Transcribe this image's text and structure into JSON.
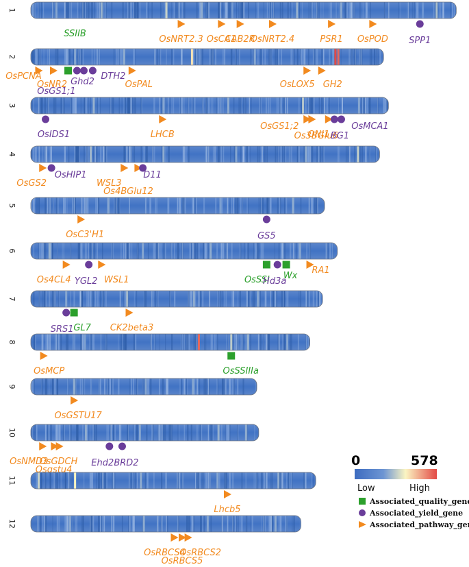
{
  "chart_data": {
    "type": "heatmap",
    "title": "",
    "scale": {
      "min": 0,
      "max": 578,
      "low_label": "Low",
      "high_label": "High",
      "colors": [
        "#3d6cc0",
        "#6d95d3",
        "#fbf5c2",
        "#e34a46"
      ]
    },
    "legend": [
      {
        "name": "Associated_quality_gene",
        "shape": "square",
        "color": "#2ca02c"
      },
      {
        "name": "Associated_yield_gene",
        "shape": "circle",
        "color": "#6a3d9a"
      },
      {
        "name": "Associated_pathway_gene",
        "shape": "triangle",
        "color": "#f28a1f"
      }
    ],
    "type_colors": {
      "quality": "#2ca02c",
      "yield": "#6a3d9a",
      "pathway": "#f28a1f"
    },
    "chromosomes": [
      {
        "id": "1",
        "length": 43.3,
        "bands": [
          {
            "pos": 2.5,
            "density": 230
          },
          {
            "pos": 7.1,
            "density": 250
          },
          {
            "pos": 13.7,
            "density": 300
          },
          {
            "pos": 17.3,
            "density": 240
          },
          {
            "pos": 20.4,
            "density": 210
          },
          {
            "pos": 27.0,
            "density": 250
          },
          {
            "pos": 31.5,
            "density": 230
          },
          {
            "pos": 39.8,
            "density": 200
          },
          {
            "pos": 41.2,
            "density": 270
          }
        ],
        "genes": [
          {
            "name": "OsNRT2.3",
            "type": "pathway",
            "pos": 15.3
          },
          {
            "name": "OsCA1",
            "type": "pathway",
            "pos": 19.4
          },
          {
            "name": "CAB2R",
            "type": "pathway",
            "pos": 21.3
          },
          {
            "name": "OsNRT2.4",
            "type": "pathway",
            "pos": 24.6
          },
          {
            "name": "PSR1",
            "type": "pathway",
            "pos": 30.6
          },
          {
            "name": "OsPOD",
            "type": "pathway",
            "pos": 34.8
          },
          {
            "name": "SPP1",
            "type": "yield",
            "pos": 39.6
          }
        ]
      },
      {
        "id": "2",
        "length": 35.9,
        "bands": [
          {
            "pos": 4.4,
            "density": 230
          },
          {
            "pos": 9.4,
            "density": 240
          },
          {
            "pos": 16.3,
            "density": 380
          },
          {
            "pos": 22.7,
            "density": 230
          },
          {
            "pos": 30.9,
            "density": 578
          },
          {
            "pos": 31.2,
            "density": 540
          }
        ],
        "genes": [
          {
            "name": "OsPCNA",
            "type": "pathway",
            "pos": 0.8
          },
          {
            "name": "OsNR2",
            "type": "pathway",
            "pos": 2.3
          },
          {
            "name": "SSIIB",
            "type": "quality",
            "pos": 3.8
          },
          {
            "name": "OsGS1;1",
            "type": "yield",
            "pos": 4.7
          },
          {
            "name": "Ghd2",
            "type": "yield",
            "pos": 5.4
          },
          {
            "name": "DTH2",
            "type": "yield",
            "pos": 6.3
          },
          {
            "name": "OsPAL",
            "type": "pathway",
            "pos": 10.3
          },
          {
            "name": "OsLOX5",
            "type": "pathway",
            "pos": 28.1
          },
          {
            "name": "GH2",
            "type": "pathway",
            "pos": 29.6
          }
        ]
      },
      {
        "id": "3",
        "length": 36.4,
        "bands": [
          {
            "pos": 6.3,
            "density": 250
          },
          {
            "pos": 13.4,
            "density": 230
          },
          {
            "pos": 20.0,
            "density": 240
          },
          {
            "pos": 27.6,
            "density": 280
          },
          {
            "pos": 33.3,
            "density": 230
          }
        ],
        "genes": [
          {
            "name": "OsIDS1",
            "type": "yield",
            "pos": 1.5
          },
          {
            "name": "LHCB",
            "type": "pathway",
            "pos": 13.4
          },
          {
            "name": "OsGS1;2",
            "type": "pathway",
            "pos": 28.1
          },
          {
            "name": "ONI1",
            "type": "pathway",
            "pos": 28.6
          },
          {
            "name": "Os3BGlu6",
            "type": "pathway",
            "pos": 30.3
          },
          {
            "name": "BG1",
            "type": "yield",
            "pos": 30.9
          },
          {
            "name": "OsMCA1",
            "type": "yield",
            "pos": 31.6
          }
        ]
      },
      {
        "id": "4",
        "length": 35.5,
        "bands": [
          {
            "pos": 6.0,
            "density": 260
          },
          {
            "pos": 13.4,
            "density": 240
          },
          {
            "pos": 20.8,
            "density": 230
          },
          {
            "pos": 27.9,
            "density": 240
          },
          {
            "pos": 33.2,
            "density": 300
          }
        ],
        "genes": [
          {
            "name": "OsGS2",
            "type": "pathway",
            "pos": 1.2
          },
          {
            "name": "OsHIP1",
            "type": "yield",
            "pos": 2.1
          },
          {
            "name": "WSL3",
            "type": "pathway",
            "pos": 9.5
          },
          {
            "name": "Os4BGlu12",
            "type": "pathway",
            "pos": 10.9
          },
          {
            "name": "D11",
            "type": "yield",
            "pos": 11.4
          }
        ]
      },
      {
        "id": "5",
        "length": 29.9,
        "bands": [
          {
            "pos": 7.8,
            "density": 230
          },
          {
            "pos": 19.2,
            "density": 220
          },
          {
            "pos": 26.6,
            "density": 240
          }
        ],
        "genes": [
          {
            "name": "OsC3'H1",
            "type": "pathway",
            "pos": 5.1
          },
          {
            "name": "GS5",
            "type": "yield",
            "pos": 24.0
          }
        ]
      },
      {
        "id": "6",
        "length": 31.2,
        "bands": [
          {
            "pos": 1.8,
            "density": 250
          },
          {
            "pos": 11.3,
            "density": 230
          },
          {
            "pos": 18.2,
            "density": 240
          },
          {
            "pos": 27.3,
            "density": 230
          }
        ],
        "genes": [
          {
            "name": "Os4CL4",
            "type": "pathway",
            "pos": 3.6
          },
          {
            "name": "YGL2",
            "type": "yield",
            "pos": 5.9
          },
          {
            "name": "WSL1",
            "type": "pathway",
            "pos": 7.2
          },
          {
            "name": "OsSSI",
            "type": "quality",
            "pos": 24.0
          },
          {
            "name": "Hd3a",
            "type": "yield",
            "pos": 25.1
          },
          {
            "name": "Wx",
            "type": "quality",
            "pos": 26.0
          },
          {
            "name": "RA1",
            "type": "pathway",
            "pos": 28.4
          }
        ]
      },
      {
        "id": "7",
        "length": 29.7,
        "bands": [
          {
            "pos": 3.5,
            "density": 230
          },
          {
            "pos": 9.7,
            "density": 260
          },
          {
            "pos": 16.5,
            "density": 240
          },
          {
            "pos": 23.0,
            "density": 230
          }
        ],
        "genes": [
          {
            "name": "SRS1",
            "type": "yield",
            "pos": 3.6
          },
          {
            "name": "GL7",
            "type": "quality",
            "pos": 4.4
          },
          {
            "name": "CK2beta3",
            "type": "pathway",
            "pos": 10.0
          }
        ]
      },
      {
        "id": "8",
        "length": 28.4,
        "bands": [
          {
            "pos": 5.4,
            "density": 220
          },
          {
            "pos": 17.0,
            "density": 540
          },
          {
            "pos": 20.3,
            "density": 290
          },
          {
            "pos": 22.0,
            "density": 250
          },
          {
            "pos": 26.0,
            "density": 230
          }
        ],
        "genes": [
          {
            "name": "OsMCP",
            "type": "pathway",
            "pos": 1.3
          },
          {
            "name": "OsSSIIIa",
            "type": "quality",
            "pos": 20.4
          }
        ]
      },
      {
        "id": "9",
        "length": 23.0,
        "bands": [
          {
            "pos": 4.3,
            "density": 240
          },
          {
            "pos": 11.6,
            "density": 230
          },
          {
            "pos": 16.4,
            "density": 230
          }
        ],
        "genes": [
          {
            "name": "OsGSTU17",
            "type": "pathway",
            "pos": 4.4
          }
        ]
      },
      {
        "id": "10",
        "length": 23.2,
        "bands": [
          {
            "pos": 5.5,
            "density": 240
          },
          {
            "pos": 11.0,
            "density": 230
          },
          {
            "pos": 19.0,
            "density": 250
          },
          {
            "pos": 21.8,
            "density": 240
          }
        ],
        "genes": [
          {
            "name": "OsNMD3",
            "type": "pathway",
            "pos": 1.2
          },
          {
            "name": "OsGDCH",
            "type": "pathway",
            "pos": 2.4
          },
          {
            "name": "Osgstu4",
            "type": "pathway",
            "pos": 2.9
          },
          {
            "name": "Ehd2",
            "type": "yield",
            "pos": 8.0
          },
          {
            "name": "BRD2",
            "type": "yield",
            "pos": 9.3
          }
        ]
      },
      {
        "id": "11",
        "length": 29.0,
        "bands": [
          {
            "pos": 0.7,
            "density": 300
          },
          {
            "pos": 4.4,
            "density": 360
          },
          {
            "pos": 11.1,
            "density": 240
          },
          {
            "pos": 18.9,
            "density": 230
          },
          {
            "pos": 25.1,
            "density": 240
          }
        ],
        "genes": [
          {
            "name": "Lhcb5",
            "type": "pathway",
            "pos": 20.0
          }
        ]
      },
      {
        "id": "12",
        "length": 27.5,
        "bands": [
          {
            "pos": 3.9,
            "density": 230
          },
          {
            "pos": 11.4,
            "density": 240
          },
          {
            "pos": 17.9,
            "density": 230
          },
          {
            "pos": 24.8,
            "density": 240
          }
        ],
        "genes": [
          {
            "name": "OsRBCS4",
            "type": "pathway",
            "pos": 14.6
          },
          {
            "name": "OsRBCS5",
            "type": "pathway",
            "pos": 15.4
          },
          {
            "name": "OsRBCS2",
            "type": "pathway",
            "pos": 16.0
          }
        ]
      }
    ]
  }
}
